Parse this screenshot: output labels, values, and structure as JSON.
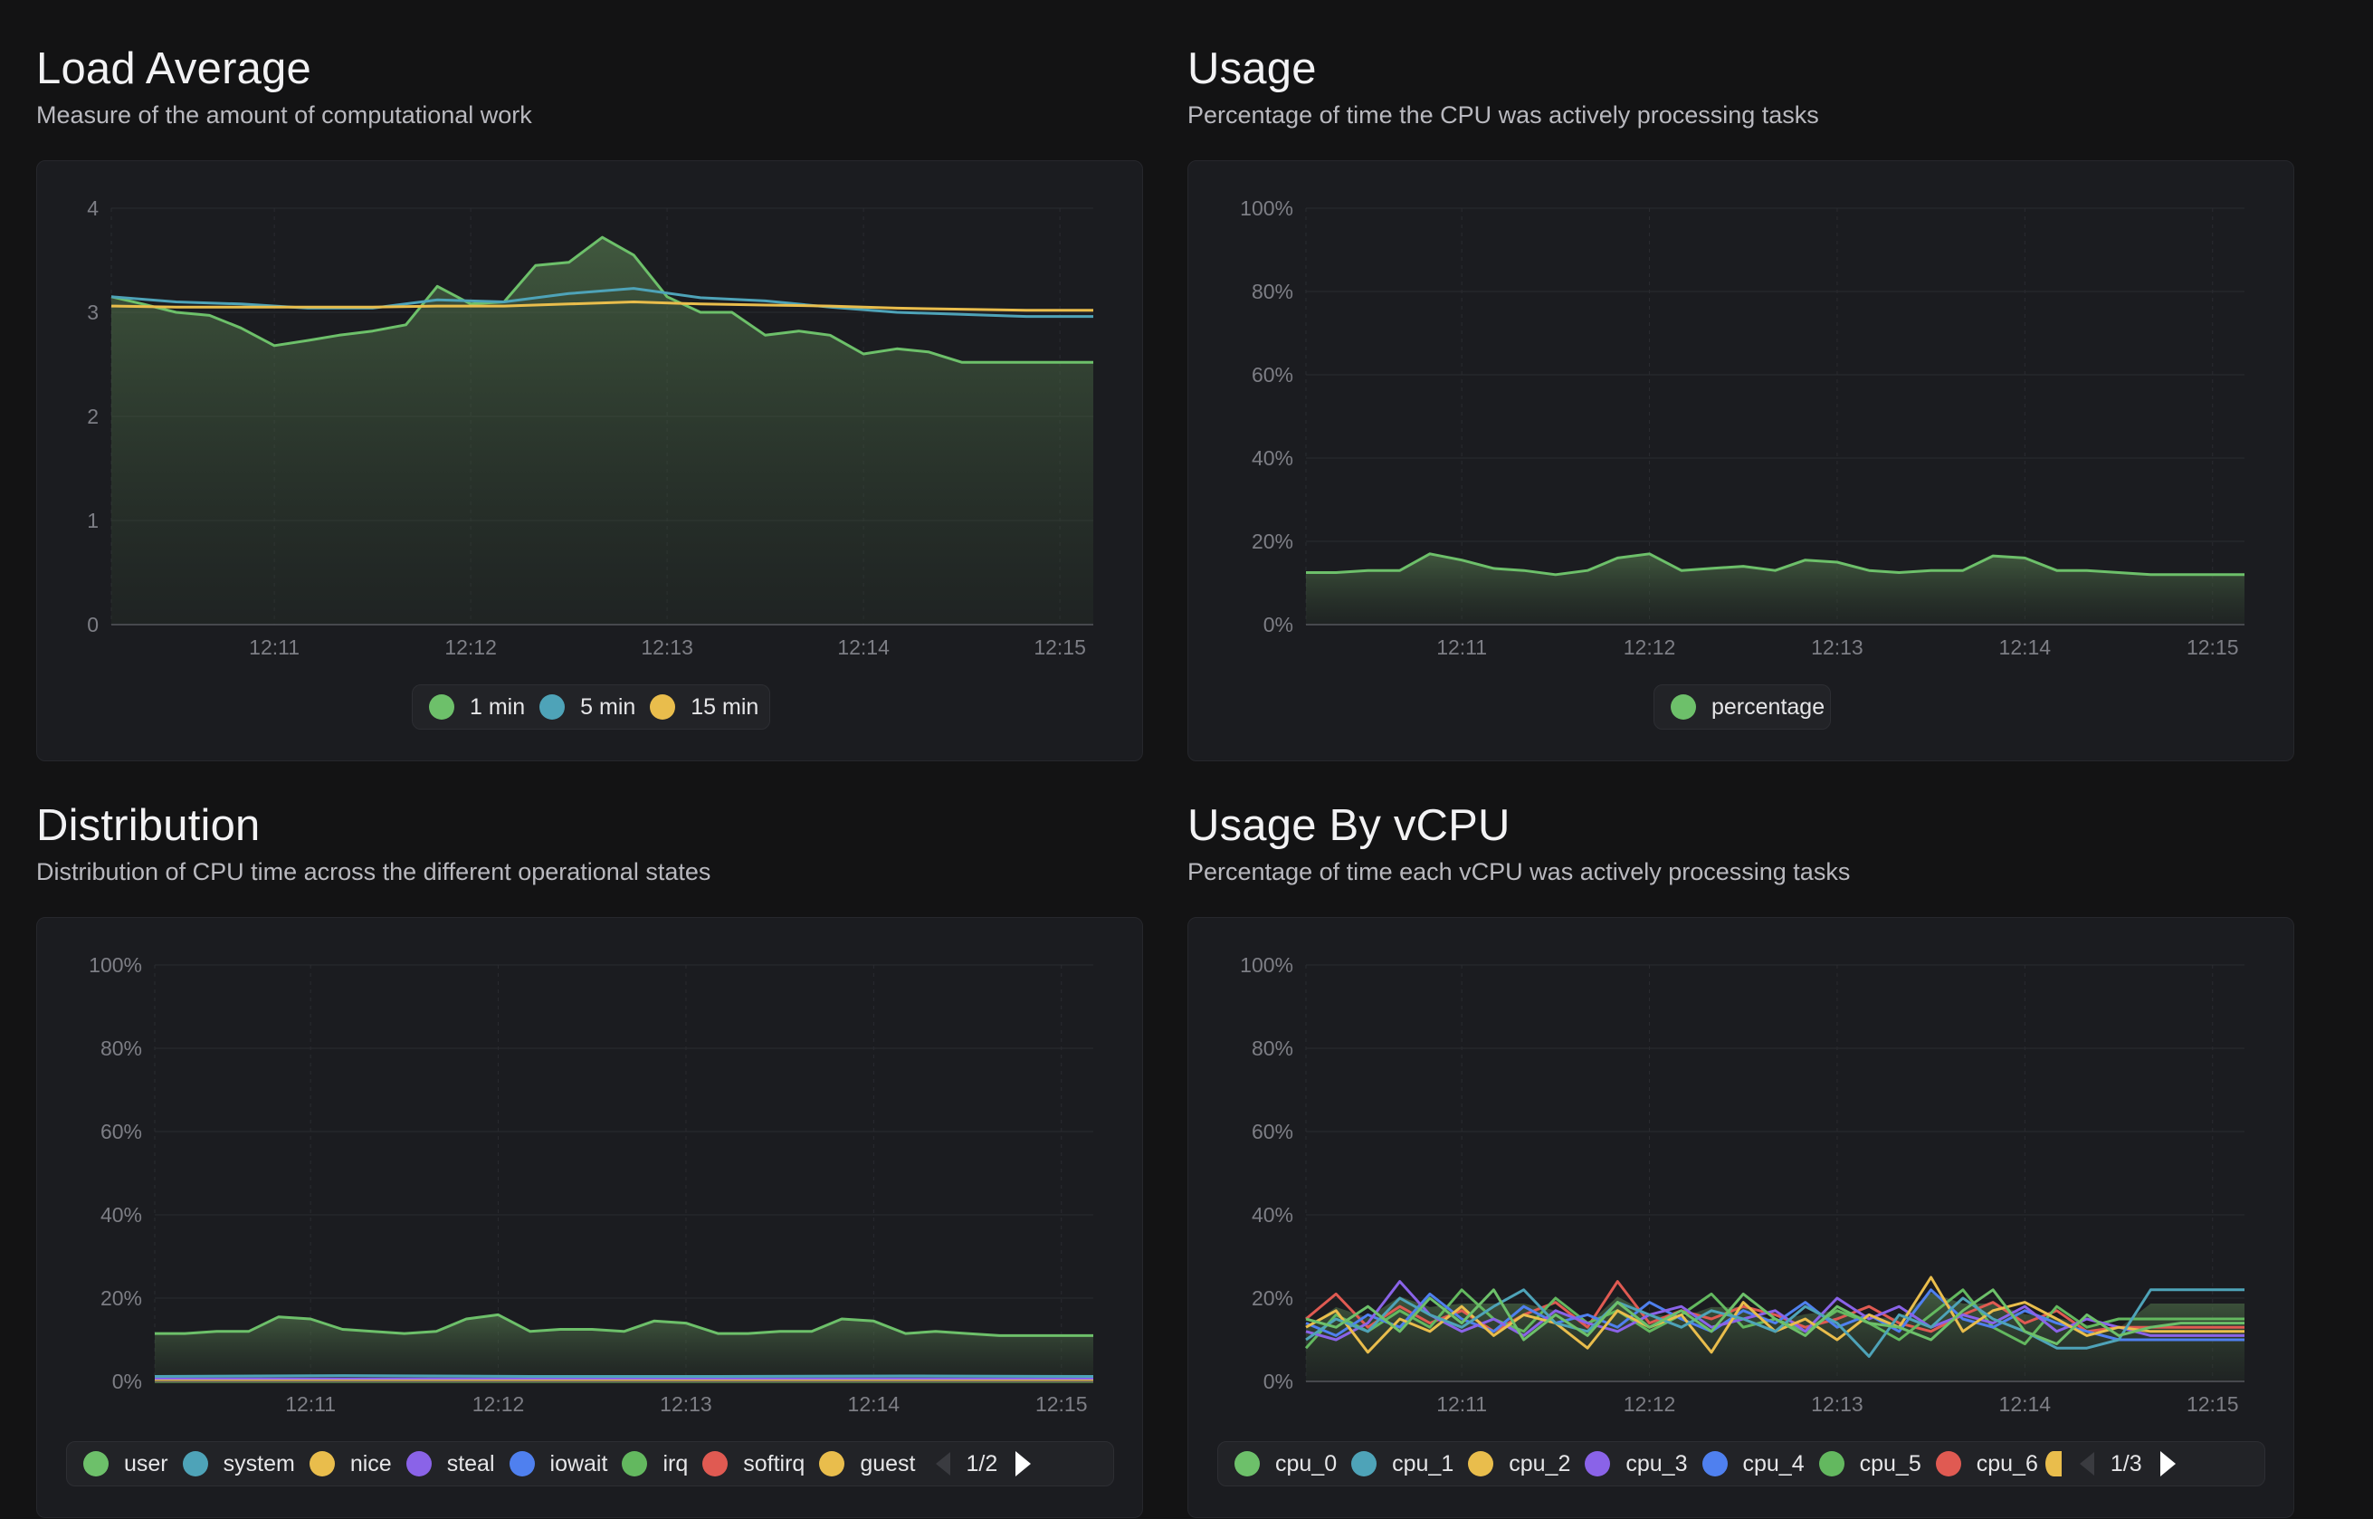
{
  "panels": {
    "load": {
      "title": "Load Average",
      "subtitle": "Measure of the amount of computational work",
      "legend": [
        {
          "label": "1 min",
          "color": "#6dc06a"
        },
        {
          "label": "5 min",
          "color": "#4ea3b8"
        },
        {
          "label": "15 min",
          "color": "#e9bd4c"
        }
      ]
    },
    "usage": {
      "title": "Usage",
      "subtitle": "Percentage of time the CPU was actively processing tasks",
      "legend": [
        {
          "label": "percentage",
          "color": "#6dc06a"
        }
      ]
    },
    "dist": {
      "title": "Distribution",
      "subtitle": "Distribution of CPU time across the different operational states",
      "legend": [
        {
          "label": "user",
          "color": "#6dc06a"
        },
        {
          "label": "system",
          "color": "#4ea3b8"
        },
        {
          "label": "nice",
          "color": "#e9bd4c"
        },
        {
          "label": "steal",
          "color": "#8a63e8"
        },
        {
          "label": "iowait",
          "color": "#4f80ef"
        },
        {
          "label": "irq",
          "color": "#63b85f"
        },
        {
          "label": "softirq",
          "color": "#e05a52"
        },
        {
          "label": "guest",
          "color": "#e9bd4c"
        }
      ],
      "page": "1/2"
    },
    "vcpu": {
      "title": "Usage By vCPU",
      "subtitle": "Percentage of time each vCPU was actively processing tasks",
      "legend": [
        {
          "label": "cpu_0",
          "color": "#6dc06a"
        },
        {
          "label": "cpu_1",
          "color": "#4ea3b8"
        },
        {
          "label": "cpu_2",
          "color": "#e9bd4c"
        },
        {
          "label": "cpu_3",
          "color": "#8a63e8"
        },
        {
          "label": "cpu_4",
          "color": "#4f80ef"
        },
        {
          "label": "cpu_5",
          "color": "#63b85f"
        },
        {
          "label": "cpu_6",
          "color": "#e05a52"
        }
      ],
      "legend_partial_color": "#e9bd4c",
      "page": "1/3"
    }
  },
  "chart_data": [
    {
      "id": "load",
      "type": "area",
      "title": "Load Average",
      "x_ticks": [
        "12:11",
        "12:12",
        "12:13",
        "12:14",
        "12:15"
      ],
      "x_range": [
        10.17,
        15.17
      ],
      "ylim": [
        0,
        4
      ],
      "y_ticks": [
        "0",
        "1",
        "2",
        "3",
        "4"
      ],
      "grid": true,
      "legend_position": "bottom",
      "series": [
        {
          "name": "1 min",
          "color": "#6dc06a",
          "x": [
            10.17,
            10.33,
            10.5,
            10.67,
            10.83,
            11.0,
            11.17,
            11.33,
            11.5,
            11.67,
            11.83,
            12.0,
            12.17,
            12.33,
            12.5,
            12.67,
            12.83,
            13.0,
            13.17,
            13.33,
            13.5,
            13.67,
            13.83,
            14.0,
            14.17,
            14.33,
            14.5,
            14.67,
            14.83,
            15.0,
            15.17
          ],
          "y": [
            3.15,
            3.08,
            3.0,
            2.97,
            2.85,
            2.68,
            2.73,
            2.78,
            2.82,
            2.88,
            3.25,
            3.08,
            3.1,
            3.45,
            3.48,
            3.72,
            3.55,
            3.15,
            3.0,
            3.0,
            2.78,
            2.82,
            2.78,
            2.6,
            2.65,
            2.62,
            2.52,
            2.52,
            2.52,
            2.52,
            2.52
          ]
        },
        {
          "name": "5 min",
          "color": "#4ea3b8",
          "x": [
            10.17,
            10.5,
            10.83,
            11.17,
            11.5,
            11.83,
            12.17,
            12.5,
            12.83,
            13.17,
            13.5,
            13.83,
            14.17,
            14.5,
            14.83,
            15.17
          ],
          "y": [
            3.15,
            3.1,
            3.08,
            3.04,
            3.04,
            3.12,
            3.1,
            3.18,
            3.23,
            3.14,
            3.11,
            3.05,
            3.0,
            2.98,
            2.96,
            2.96
          ]
        },
        {
          "name": "15 min",
          "color": "#e9bd4c",
          "x": [
            10.17,
            10.5,
            10.83,
            11.17,
            11.5,
            11.83,
            12.17,
            12.5,
            12.83,
            13.17,
            13.5,
            13.83,
            14.17,
            14.5,
            14.83,
            15.17
          ],
          "y": [
            3.06,
            3.05,
            3.05,
            3.05,
            3.05,
            3.06,
            3.06,
            3.08,
            3.1,
            3.08,
            3.07,
            3.06,
            3.04,
            3.03,
            3.02,
            3.02
          ]
        }
      ]
    },
    {
      "id": "usage",
      "type": "area",
      "title": "Usage",
      "x_ticks": [
        "12:11",
        "12:12",
        "12:13",
        "12:14",
        "12:15"
      ],
      "x_range": [
        10.17,
        15.17
      ],
      "ylim": [
        0,
        100
      ],
      "y_ticks": [
        "0%",
        "20%",
        "40%",
        "60%",
        "80%",
        "100%"
      ],
      "grid": true,
      "legend_position": "bottom",
      "series": [
        {
          "name": "percentage",
          "color": "#6dc06a",
          "x": [
            10.17,
            10.33,
            10.5,
            10.67,
            10.83,
            11.0,
            11.17,
            11.33,
            11.5,
            11.67,
            11.83,
            12.0,
            12.17,
            12.33,
            12.5,
            12.67,
            12.83,
            13.0,
            13.17,
            13.33,
            13.5,
            13.67,
            13.83,
            14.0,
            14.17,
            14.33,
            14.5,
            14.67,
            14.83,
            15.0,
            15.17
          ],
          "y": [
            12.5,
            12.5,
            13,
            13,
            17,
            15.5,
            13.5,
            13,
            12,
            13,
            16,
            17,
            13,
            13.5,
            14,
            13,
            15.5,
            15,
            13,
            12.5,
            13,
            13,
            16.5,
            16,
            13,
            13,
            12.5,
            12,
            12,
            12,
            12
          ]
        }
      ]
    },
    {
      "id": "dist",
      "type": "area",
      "title": "Distribution",
      "x_ticks": [
        "12:11",
        "12:12",
        "12:13",
        "12:14",
        "12:15"
      ],
      "x_range": [
        10.17,
        15.17
      ],
      "ylim": [
        0,
        100
      ],
      "y_ticks": [
        "0%",
        "20%",
        "40%",
        "60%",
        "80%",
        "100%"
      ],
      "grid": true,
      "legend_position": "bottom",
      "series": [
        {
          "name": "user",
          "color": "#6dc06a",
          "x": [
            10.17,
            10.33,
            10.5,
            10.67,
            10.83,
            11.0,
            11.17,
            11.33,
            11.5,
            11.67,
            11.83,
            12.0,
            12.17,
            12.33,
            12.5,
            12.67,
            12.83,
            13.0,
            13.17,
            13.33,
            13.5,
            13.67,
            13.83,
            14.0,
            14.17,
            14.33,
            14.5,
            14.67,
            14.83,
            15.0,
            15.17
          ],
          "y": [
            11.5,
            11.5,
            12,
            12,
            15.5,
            15,
            12.5,
            12,
            11.5,
            12,
            15,
            16,
            12,
            12.5,
            12.5,
            12,
            14.5,
            14,
            11.5,
            11.5,
            12,
            12,
            15,
            14.5,
            11.5,
            12,
            11.5,
            11,
            11,
            11,
            11
          ]
        },
        {
          "name": "system",
          "color": "#4ea3b8",
          "x": [
            10.17,
            11.17,
            12.17,
            13.17,
            14.17,
            15.17
          ],
          "y": [
            1.2,
            1.4,
            1.2,
            1.2,
            1.3,
            1.2
          ]
        },
        {
          "name": "nice",
          "color": "#e9bd4c",
          "x": [
            10.17,
            15.17
          ],
          "y": [
            0.1,
            0.1
          ]
        },
        {
          "name": "steal",
          "color": "#8a63e8",
          "x": [
            10.17,
            15.17
          ],
          "y": [
            0.6,
            0.6
          ]
        },
        {
          "name": "iowait",
          "color": "#4f80ef",
          "x": [
            10.17,
            15.17
          ],
          "y": [
            0.3,
            0.3
          ]
        },
        {
          "name": "irq",
          "color": "#63b85f",
          "x": [
            10.17,
            15.17
          ],
          "y": [
            0.0,
            0.0
          ]
        },
        {
          "name": "softirq",
          "color": "#e05a52",
          "x": [
            10.17,
            15.17
          ],
          "y": [
            0.2,
            0.2
          ]
        },
        {
          "name": "guest",
          "color": "#e9bd4c",
          "x": [
            10.17,
            15.17
          ],
          "y": [
            0.0,
            0.0
          ]
        }
      ]
    },
    {
      "id": "vcpu",
      "type": "area",
      "title": "Usage By vCPU",
      "x_ticks": [
        "12:11",
        "12:12",
        "12:13",
        "12:14",
        "12:15"
      ],
      "x_range": [
        10.17,
        15.17
      ],
      "ylim": [
        0,
        100
      ],
      "y_ticks": [
        "0%",
        "20%",
        "40%",
        "60%",
        "80%",
        "100%"
      ],
      "grid": true,
      "legend_position": "bottom",
      "series": [
        {
          "name": "cpu_0",
          "color": "#6dc06a",
          "x": [
            10.17,
            10.33,
            10.5,
            10.67,
            10.83,
            11.0,
            11.17,
            11.33,
            11.5,
            11.67,
            11.83,
            12.0,
            12.17,
            12.33,
            12.5,
            12.67,
            12.83,
            13.0,
            13.17,
            13.33,
            13.5,
            13.67,
            13.83,
            14.0,
            14.17,
            14.33,
            14.5,
            14.67,
            14.83,
            15.0,
            15.17
          ],
          "y": [
            15,
            13,
            18,
            12,
            20,
            14,
            22,
            10,
            16,
            11,
            19,
            13,
            17,
            12,
            21,
            15,
            11,
            18,
            14,
            13,
            10,
            17,
            22,
            12,
            9,
            16,
            11,
            13,
            14,
            14,
            14
          ]
        },
        {
          "name": "cpu_1",
          "color": "#4ea3b8",
          "x": [
            10.17,
            10.33,
            10.5,
            10.67,
            10.83,
            11.0,
            11.17,
            11.33,
            11.5,
            11.67,
            11.83,
            12.0,
            12.17,
            12.33,
            12.5,
            12.67,
            12.83,
            13.0,
            13.17,
            13.33,
            13.5,
            13.67,
            13.83,
            14.0,
            14.17,
            14.33,
            14.5,
            14.67,
            14.83,
            15.0,
            15.17
          ],
          "y": [
            10,
            15,
            12,
            20,
            16,
            13,
            18,
            22,
            14,
            12,
            19,
            16,
            13,
            17,
            15,
            12,
            18,
            14,
            6,
            16,
            13,
            20,
            15,
            12,
            8,
            8,
            10,
            22,
            22,
            22,
            22
          ]
        },
        {
          "name": "cpu_2",
          "color": "#e9bd4c",
          "x": [
            10.17,
            10.33,
            10.5,
            10.67,
            10.83,
            11.0,
            11.17,
            11.33,
            11.5,
            11.67,
            11.83,
            12.0,
            12.17,
            12.33,
            12.5,
            12.67,
            12.83,
            13.0,
            13.17,
            13.33,
            13.5,
            13.67,
            13.83,
            14.0,
            14.17,
            14.33,
            14.5,
            14.67,
            14.83,
            15.0,
            15.17
          ],
          "y": [
            13,
            17,
            7,
            15,
            12,
            18,
            11,
            16,
            14,
            8,
            17,
            13,
            16,
            7,
            19,
            12,
            15,
            10,
            16,
            13,
            25,
            12,
            17,
            19,
            15,
            11,
            13,
            12,
            12,
            12,
            12
          ]
        },
        {
          "name": "cpu_3",
          "color": "#8a63e8",
          "x": [
            10.17,
            10.33,
            10.5,
            10.67,
            10.83,
            11.0,
            11.17,
            11.33,
            11.5,
            11.67,
            11.83,
            12.0,
            12.17,
            12.33,
            12.5,
            12.67,
            12.83,
            13.0,
            13.17,
            13.33,
            13.5,
            13.67,
            13.83,
            14.0,
            14.17,
            14.33,
            14.5,
            14.67,
            14.83,
            15.0,
            15.17
          ],
          "y": [
            12,
            10,
            14,
            24,
            16,
            12,
            15,
            11,
            17,
            14,
            12,
            16,
            18,
            13,
            15,
            17,
            12,
            20,
            15,
            18,
            13,
            16,
            14,
            18,
            12,
            15,
            13,
            11,
            11,
            11,
            11
          ]
        },
        {
          "name": "cpu_4",
          "color": "#4f80ef",
          "x": [
            10.17,
            10.33,
            10.5,
            10.67,
            10.83,
            11.0,
            11.17,
            11.33,
            11.5,
            11.67,
            11.83,
            12.0,
            12.17,
            12.33,
            12.5,
            12.67,
            12.83,
            13.0,
            13.17,
            13.33,
            13.5,
            13.67,
            13.83,
            14.0,
            14.17,
            14.33,
            14.5,
            14.67,
            14.83,
            15.0,
            15.17
          ],
          "y": [
            14,
            11,
            16,
            13,
            21,
            15,
            12,
            18,
            14,
            16,
            13,
            19,
            15,
            12,
            17,
            14,
            19,
            13,
            16,
            12,
            22,
            15,
            13,
            17,
            14,
            12,
            10,
            10,
            10,
            10,
            10
          ]
        },
        {
          "name": "cpu_5",
          "color": "#63b85f",
          "x": [
            10.17,
            10.33,
            10.5,
            10.67,
            10.83,
            11.0,
            11.17,
            11.33,
            11.5,
            11.67,
            11.83,
            12.0,
            12.17,
            12.33,
            12.5,
            12.67,
            12.83,
            13.0,
            13.17,
            13.33,
            13.5,
            13.67,
            13.83,
            14.0,
            14.17,
            14.33,
            14.5,
            14.67,
            14.83,
            15.0,
            15.17
          ],
          "y": [
            8,
            16,
            12,
            17,
            13,
            22,
            15,
            12,
            20,
            14,
            17,
            12,
            16,
            21,
            13,
            15,
            12,
            17,
            14,
            10,
            16,
            22,
            13,
            9,
            18,
            13,
            15,
            15,
            15,
            15,
            15
          ]
        },
        {
          "name": "cpu_6",
          "color": "#e05a52",
          "x": [
            10.17,
            10.33,
            10.5,
            10.67,
            10.83,
            11.0,
            11.17,
            11.33,
            11.5,
            11.67,
            11.83,
            12.0,
            12.17,
            12.33,
            12.5,
            12.67,
            12.83,
            13.0,
            13.17,
            13.33,
            13.5,
            13.67,
            13.83,
            14.0,
            14.17,
            14.33,
            14.5,
            14.67,
            14.83,
            15.0,
            15.17
          ],
          "y": [
            15,
            21,
            13,
            18,
            14,
            17,
            12,
            16,
            19,
            13,
            24,
            14,
            17,
            15,
            18,
            16,
            13,
            15,
            18,
            14,
            12,
            16,
            19,
            14,
            17,
            12,
            13,
            13,
            13,
            13,
            13
          ]
        }
      ]
    }
  ]
}
